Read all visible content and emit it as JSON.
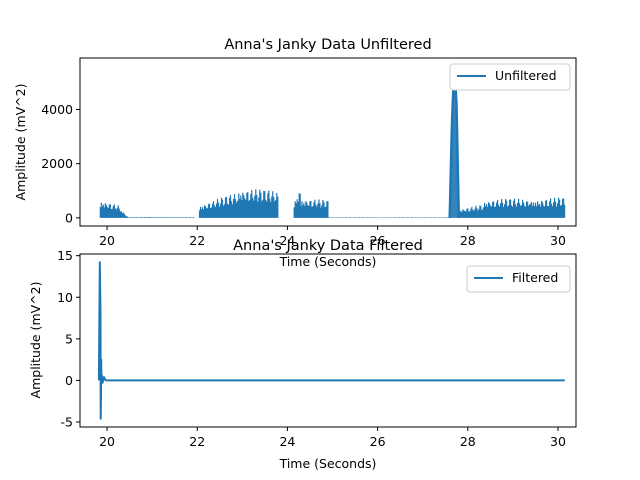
{
  "chart_data": [
    {
      "type": "line",
      "title": "Anna's Janky Data Unfiltered",
      "xlabel": "Time (Seconds)",
      "ylabel": "Amplitude (mV^2)",
      "xlim": [
        19.4,
        30.4
      ],
      "ylim": [
        -300,
        5900
      ],
      "xticks": [
        20,
        22,
        24,
        26,
        28,
        30
      ],
      "yticks": [
        0,
        2000,
        4000
      ],
      "grid": false,
      "legend_position": "top-right",
      "series": [
        {
          "name": "Unfiltered",
          "color": "#1f77b4",
          "segments": [
            {
              "x": [
                19.85,
                20.25
              ],
              "min": 0,
              "max_start": 720,
              "max_end": 480
            },
            {
              "x": [
                20.25,
                20.45
              ],
              "min": 0,
              "max_start": 480,
              "max_end": 60
            },
            {
              "x": [
                20.45,
                21.95
              ],
              "min": 0,
              "max_start": 30,
              "max_end": 25
            },
            {
              "x": [
                22.05,
                22.9
              ],
              "min": 0,
              "max_start": 500,
              "max_end": 950
            },
            {
              "x": [
                22.9,
                23.8
              ],
              "min": 0,
              "max_start": 1150,
              "max_end": 1000
            },
            {
              "x": [
                24.15,
                24.3
              ],
              "min": 0,
              "max_start": 700,
              "max_end": 1250
            },
            {
              "x": [
                24.3,
                24.9
              ],
              "min": 0,
              "max_start": 780,
              "max_end": 650
            },
            {
              "x": [
                24.9,
                27.6
              ],
              "min": 0,
              "max_start": 20,
              "max_end": 20
            },
            {
              "x": [
                27.78,
                28.35
              ],
              "min": 0,
              "max_start": 350,
              "max_end": 500
            },
            {
              "x": [
                28.35,
                30.15
              ],
              "min": 0,
              "max_start": 700,
              "max_end": 760
            }
          ],
          "spike": {
            "x": [
              27.6,
              27.65,
              27.7,
              27.75,
              27.8
            ],
            "y": [
              0,
              3500,
              5650,
              4200,
              0
            ]
          }
        }
      ]
    },
    {
      "type": "line",
      "title": "Anna's Janky Data Filtered",
      "xlabel": "Time (Seconds)",
      "ylabel": "Amplitude (mV^2)",
      "xlim": [
        19.4,
        30.4
      ],
      "ylim": [
        -5.6,
        15.2
      ],
      "xticks": [
        20,
        22,
        24,
        26,
        28,
        30
      ],
      "yticks": [
        -5,
        0,
        5,
        10,
        15
      ],
      "grid": false,
      "legend_position": "top-right",
      "series": [
        {
          "name": "Filtered",
          "color": "#1f77b4",
          "x": [
            19.82,
            19.84,
            19.855,
            19.86,
            19.865,
            19.87,
            19.875,
            19.885,
            19.9,
            19.93,
            19.97,
            20.05,
            20.5,
            30.15
          ],
          "y": [
            0,
            14.2,
            8,
            -4.6,
            -2,
            2.5,
            0.3,
            0.6,
            -0.3,
            0.4,
            0,
            0,
            0,
            0
          ]
        }
      ]
    }
  ]
}
